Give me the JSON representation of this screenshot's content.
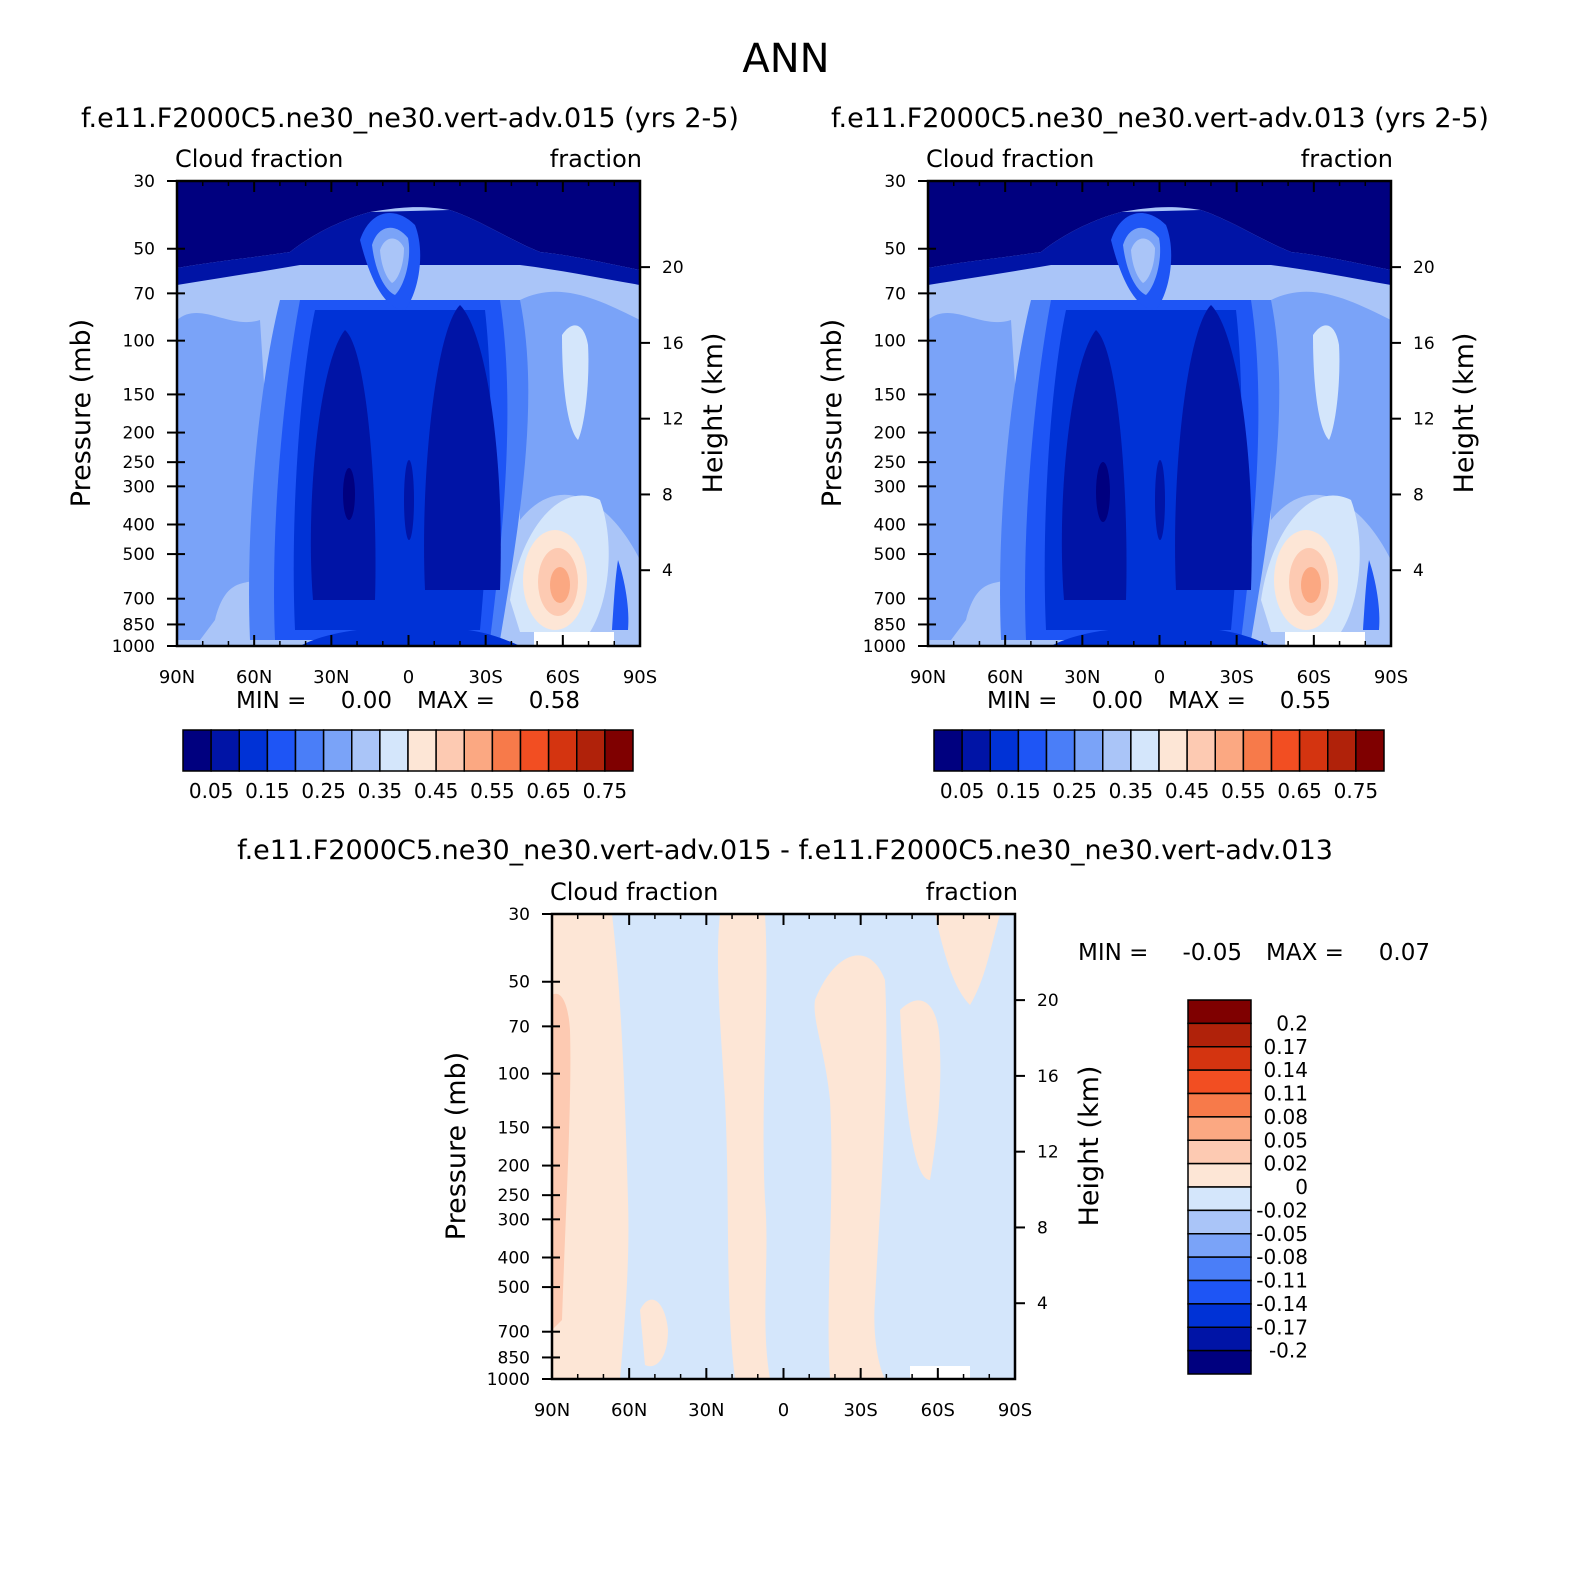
{
  "figure": {
    "title": "ANN"
  },
  "chart_data": [
    {
      "type": "heatmap",
      "title": "f.e11.F2000C5.ne30_ne30.vert-adv.015 (yrs 2-5)",
      "left_string": "Cloud fraction",
      "right_string": "fraction",
      "ylabel": "Pressure (mb)",
      "ylabel_right": "Height (km)",
      "x_ticks": [
        "90N",
        "60N",
        "30N",
        "0",
        "30S",
        "60S",
        "90S"
      ],
      "y_ticks": [
        "30",
        "50",
        "70",
        "100",
        "150",
        "200",
        "250",
        "300",
        "400",
        "500",
        "700",
        "850",
        "1000"
      ],
      "y_ticks_right": [
        "20",
        "16",
        "12",
        "8",
        "4"
      ],
      "y_scale": "log",
      "xlim": [
        90,
        -90
      ],
      "ylim": [
        1000,
        30
      ],
      "min_label": "MIN =",
      "min_value": "0.00",
      "max_label": "MAX =",
      "max_value": "0.58",
      "colorbar": {
        "orientation": "horizontal",
        "labels": [
          "0.05",
          "0.15",
          "0.25",
          "0.35",
          "0.45",
          "0.55",
          "0.65",
          "0.75"
        ],
        "levels": [
          0.05,
          0.1,
          0.15,
          0.2,
          0.25,
          0.3,
          0.35,
          0.4,
          0.45,
          0.5,
          0.55,
          0.6,
          0.65,
          0.7,
          0.75
        ]
      }
    },
    {
      "type": "heatmap",
      "title": "f.e11.F2000C5.ne30_ne30.vert-adv.013 (yrs 2-5)",
      "left_string": "Cloud fraction",
      "right_string": "fraction",
      "ylabel": "Pressure (mb)",
      "ylabel_right": "Height (km)",
      "x_ticks": [
        "90N",
        "60N",
        "30N",
        "0",
        "30S",
        "60S",
        "90S"
      ],
      "y_ticks": [
        "30",
        "50",
        "70",
        "100",
        "150",
        "200",
        "250",
        "300",
        "400",
        "500",
        "700",
        "850",
        "1000"
      ],
      "y_ticks_right": [
        "20",
        "16",
        "12",
        "8",
        "4"
      ],
      "y_scale": "log",
      "xlim": [
        90,
        -90
      ],
      "ylim": [
        1000,
        30
      ],
      "min_label": "MIN =",
      "min_value": "0.00",
      "max_label": "MAX =",
      "max_value": "0.55",
      "colorbar": {
        "orientation": "horizontal",
        "labels": [
          "0.05",
          "0.15",
          "0.25",
          "0.35",
          "0.45",
          "0.55",
          "0.65",
          "0.75"
        ],
        "levels": [
          0.05,
          0.1,
          0.15,
          0.2,
          0.25,
          0.3,
          0.35,
          0.4,
          0.45,
          0.5,
          0.55,
          0.6,
          0.65,
          0.7,
          0.75
        ]
      }
    },
    {
      "type": "heatmap",
      "title": "f.e11.F2000C5.ne30_ne30.vert-adv.015 - f.e11.F2000C5.ne30_ne30.vert-adv.013",
      "left_string": "Cloud fraction",
      "right_string": "fraction",
      "ylabel": "Pressure (mb)",
      "ylabel_right": "Height (km)",
      "x_ticks": [
        "90N",
        "60N",
        "30N",
        "0",
        "30S",
        "60S",
        "90S"
      ],
      "y_ticks": [
        "30",
        "50",
        "70",
        "100",
        "150",
        "200",
        "250",
        "300",
        "400",
        "500",
        "700",
        "850",
        "1000"
      ],
      "y_ticks_right": [
        "20",
        "16",
        "12",
        "8",
        "4"
      ],
      "y_scale": "log",
      "xlim": [
        90,
        -90
      ],
      "ylim": [
        1000,
        30
      ],
      "min_label": "MIN =",
      "min_value": "-0.05",
      "max_label": "MAX =",
      "max_value": "0.07",
      "colorbar": {
        "orientation": "vertical",
        "labels": [
          "0.2",
          "0.17",
          "0.14",
          "0.11",
          "0.08",
          "0.05",
          "0.02",
          "0",
          "-0.02",
          "-0.05",
          "-0.08",
          "-0.11",
          "-0.14",
          "-0.17",
          "-0.2"
        ],
        "levels": [
          0.2,
          0.17,
          0.14,
          0.11,
          0.08,
          0.05,
          0.02,
          0,
          -0.02,
          -0.05,
          -0.08,
          -0.11,
          -0.14,
          -0.17,
          -0.2
        ]
      }
    }
  ],
  "colors": {
    "scale": [
      "#00007f",
      "#0014a6",
      "#0032d6",
      "#1e55f5",
      "#4a7ef8",
      "#7aa3f8",
      "#aac5f8",
      "#d4e6fb",
      "#fde6d6",
      "#fdcab2",
      "#fba882",
      "#f77a4a",
      "#f24e22",
      "#d43410",
      "#b0220a",
      "#7f0000"
    ],
    "missing": "#ffffff"
  }
}
